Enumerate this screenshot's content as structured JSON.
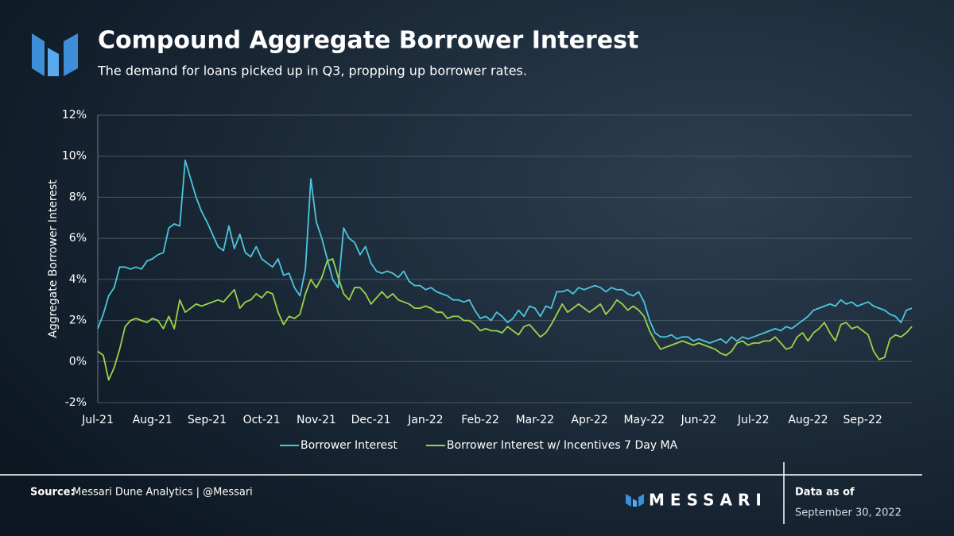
{
  "chart_data": {
    "type": "line",
    "title": "Compound Aggregate Borrower Interest",
    "subtitle": "The demand for loans picked up in Q3, propping up borrower rates.",
    "y_label": "Aggregate Borrower Interest",
    "categories": [
      "Jul-21",
      null,
      null,
      null,
      null,
      null,
      null,
      null,
      null,
      null,
      "Aug-21",
      null,
      null,
      null,
      null,
      null,
      null,
      null,
      null,
      null,
      "Sep-21",
      null,
      null,
      null,
      null,
      null,
      null,
      null,
      null,
      null,
      "Oct-21",
      null,
      null,
      null,
      null,
      null,
      null,
      null,
      null,
      null,
      "Nov-21",
      null,
      null,
      null,
      null,
      null,
      null,
      null,
      null,
      null,
      "Dec-21",
      null,
      null,
      null,
      null,
      null,
      null,
      null,
      null,
      null,
      "Jan-22",
      null,
      null,
      null,
      null,
      null,
      null,
      null,
      null,
      null,
      "Feb-22",
      null,
      null,
      null,
      null,
      null,
      null,
      null,
      null,
      null,
      "Mar-22",
      null,
      null,
      null,
      null,
      null,
      null,
      null,
      null,
      null,
      "Apr-22",
      null,
      null,
      null,
      null,
      null,
      null,
      null,
      null,
      null,
      "May-22",
      null,
      null,
      null,
      null,
      null,
      null,
      null,
      null,
      null,
      "Jun-22",
      null,
      null,
      null,
      null,
      null,
      null,
      null,
      null,
      null,
      "Jul-22",
      null,
      null,
      null,
      null,
      null,
      null,
      null,
      null,
      null,
      "Aug-22",
      null,
      null,
      null,
      null,
      null,
      null,
      null,
      null,
      null,
      "Sep-22",
      null,
      null,
      null,
      null,
      null,
      null,
      null,
      null,
      null
    ],
    "series": [
      {
        "name": "Borrower Interest",
        "color": "#4cc6dc",
        "values": [
          1.6,
          2.3,
          3.2,
          3.6,
          4.6,
          4.6,
          4.5,
          4.6,
          4.5,
          4.9,
          5.0,
          5.2,
          5.3,
          6.5,
          6.7,
          6.6,
          9.8,
          8.9,
          8.0,
          7.3,
          6.8,
          6.2,
          5.6,
          5.4,
          6.6,
          5.5,
          6.2,
          5.3,
          5.1,
          5.6,
          5.0,
          4.8,
          4.6,
          5.0,
          4.2,
          4.3,
          3.6,
          3.2,
          4.5,
          8.9,
          6.8,
          6.0,
          5.0,
          4.0,
          3.6,
          6.5,
          6.0,
          5.8,
          5.2,
          5.6,
          4.8,
          4.4,
          4.3,
          4.4,
          4.3,
          4.1,
          4.4,
          3.9,
          3.7,
          3.7,
          3.5,
          3.6,
          3.4,
          3.3,
          3.2,
          3.0,
          3.0,
          2.9,
          3.0,
          2.5,
          2.1,
          2.2,
          2.0,
          2.4,
          2.2,
          1.9,
          2.1,
          2.5,
          2.2,
          2.7,
          2.6,
          2.2,
          2.7,
          2.6,
          3.4,
          3.4,
          3.5,
          3.3,
          3.6,
          3.5,
          3.6,
          3.7,
          3.6,
          3.4,
          3.6,
          3.5,
          3.5,
          3.3,
          3.2,
          3.4,
          2.9,
          2.0,
          1.4,
          1.2,
          1.2,
          1.3,
          1.1,
          1.2,
          1.2,
          1.0,
          1.1,
          1.0,
          0.9,
          1.0,
          1.1,
          0.9,
          1.2,
          1.0,
          1.2,
          1.1,
          1.2,
          1.3,
          1.4,
          1.5,
          1.6,
          1.5,
          1.7,
          1.6,
          1.8,
          2.0,
          2.2,
          2.5,
          2.6,
          2.7,
          2.8,
          2.7,
          3.0,
          2.8,
          2.9,
          2.7,
          2.8,
          2.9,
          2.7,
          2.6,
          2.5,
          2.3,
          2.2,
          1.9,
          2.5,
          2.6
        ]
      },
      {
        "name": "Borrower Interest w/ Incentives 7 Day MA",
        "color": "#9bd447",
        "values": [
          0.5,
          0.3,
          -0.9,
          -0.3,
          0.6,
          1.7,
          2.0,
          2.1,
          2.0,
          1.9,
          2.1,
          2.0,
          1.6,
          2.2,
          1.6,
          3.0,
          2.4,
          2.6,
          2.8,
          2.7,
          2.8,
          2.9,
          3.0,
          2.9,
          3.2,
          3.5,
          2.6,
          2.9,
          3.0,
          3.3,
          3.1,
          3.4,
          3.3,
          2.4,
          1.8,
          2.2,
          2.1,
          2.3,
          3.3,
          4.0,
          3.6,
          4.1,
          4.9,
          5.0,
          4.1,
          3.3,
          3.0,
          3.6,
          3.6,
          3.3,
          2.8,
          3.1,
          3.4,
          3.1,
          3.3,
          3.0,
          2.9,
          2.8,
          2.6,
          2.6,
          2.7,
          2.6,
          2.4,
          2.4,
          2.1,
          2.2,
          2.2,
          2.0,
          2.0,
          1.8,
          1.5,
          1.6,
          1.5,
          1.5,
          1.4,
          1.7,
          1.5,
          1.3,
          1.7,
          1.8,
          1.5,
          1.2,
          1.4,
          1.8,
          2.3,
          2.8,
          2.4,
          2.6,
          2.8,
          2.6,
          2.4,
          2.6,
          2.8,
          2.3,
          2.6,
          3.0,
          2.8,
          2.5,
          2.7,
          2.5,
          2.2,
          1.5,
          1.0,
          0.6,
          0.7,
          0.8,
          0.9,
          1.0,
          0.9,
          0.8,
          0.9,
          0.8,
          0.7,
          0.6,
          0.4,
          0.3,
          0.5,
          0.9,
          1.0,
          0.8,
          0.9,
          0.9,
          1.0,
          1.0,
          1.2,
          0.9,
          0.6,
          0.7,
          1.2,
          1.4,
          1.0,
          1.4,
          1.6,
          1.9,
          1.4,
          1.0,
          1.8,
          1.9,
          1.6,
          1.7,
          1.5,
          1.3,
          0.5,
          0.1,
          0.2,
          1.1,
          1.3,
          1.2,
          1.4,
          1.7
        ]
      }
    ],
    "ylim": [
      -2,
      12
    ],
    "yticks": [
      {
        "value": -2,
        "label": "-2%"
      },
      {
        "value": 0,
        "label": "0%"
      },
      {
        "value": 2,
        "label": "2%"
      },
      {
        "value": 4,
        "label": "4%"
      },
      {
        "value": 6,
        "label": "6%"
      },
      {
        "value": 8,
        "label": "8%"
      },
      {
        "value": 10,
        "label": "10%"
      },
      {
        "value": 12,
        "label": "12%"
      }
    ],
    "grid": true,
    "legend": "bottom"
  },
  "footer": {
    "source_label": "Source:",
    "source": "Messari Dune Analytics | @Messari",
    "brand": "MESSARI",
    "data_as_of_label": "Data as of",
    "data_as_of": "September 30, 2022"
  }
}
